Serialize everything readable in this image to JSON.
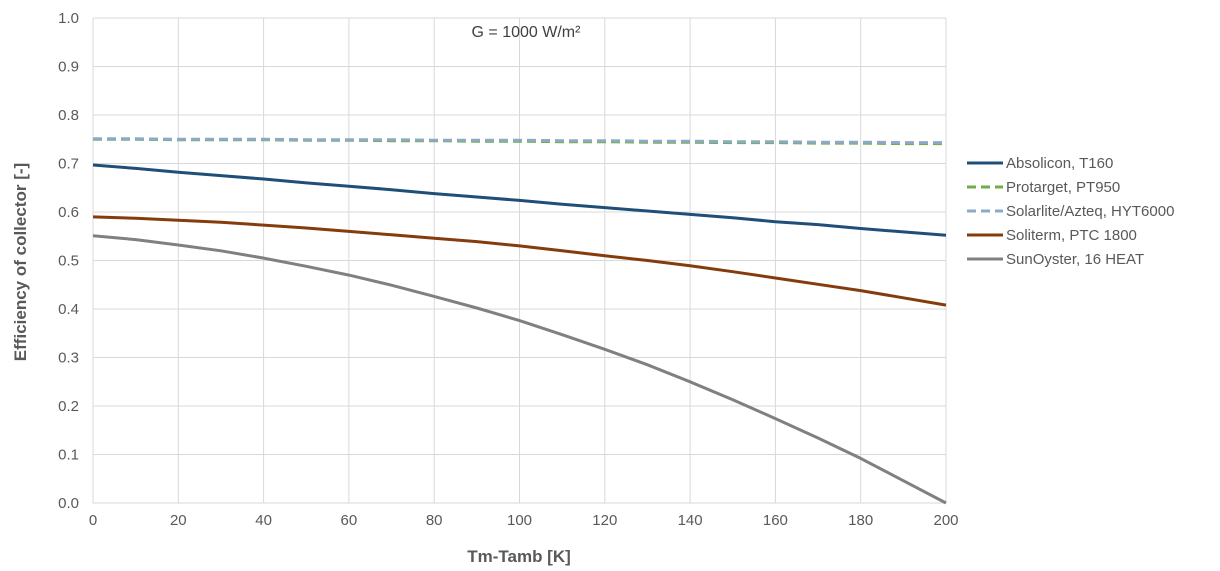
{
  "chart_data": {
    "type": "line",
    "annotation": "G = 1000 W/m²",
    "xlabel": "Tm-Tamb [K]",
    "ylabel": "Efficiency of collector [-]",
    "xlim": [
      0,
      200
    ],
    "ylim": [
      0,
      1
    ],
    "x_ticks": [
      0,
      20,
      40,
      60,
      80,
      100,
      120,
      140,
      160,
      180,
      200
    ],
    "y_ticks": [
      "0.0",
      "0.1",
      "0.2",
      "0.3",
      "0.4",
      "0.5",
      "0.6",
      "0.7",
      "0.8",
      "0.9",
      "1.0"
    ],
    "grid": true,
    "legend_position": "right",
    "x": [
      0,
      10,
      20,
      30,
      40,
      50,
      60,
      70,
      80,
      90,
      100,
      110,
      120,
      130,
      140,
      150,
      160,
      170,
      180,
      190,
      200
    ],
    "series": [
      {
        "name": "Absolicon, T160",
        "color": "#1f4e79",
        "dash": "solid",
        "values": [
          0.697,
          0.69,
          0.682,
          0.675,
          0.668,
          0.66,
          0.653,
          0.646,
          0.638,
          0.631,
          0.624,
          0.616,
          0.609,
          0.602,
          0.595,
          0.588,
          0.58,
          0.574,
          0.566,
          0.559,
          0.552
        ]
      },
      {
        "name": "Protarget, PT950",
        "color": "#70ad47",
        "dash": "dashed",
        "values": [
          0.75,
          0.75,
          0.749,
          0.749,
          0.749,
          0.748,
          0.748,
          0.747,
          0.747,
          0.746,
          0.746,
          0.745,
          0.745,
          0.744,
          0.744,
          0.743,
          0.743,
          0.742,
          0.742,
          0.741,
          0.741
        ]
      },
      {
        "name": "Solarlite/Azteq, HYT6000",
        "color": "#8ea9c8",
        "dash": "dashed",
        "values": [
          0.751,
          0.751,
          0.75,
          0.75,
          0.75,
          0.749,
          0.749,
          0.749,
          0.748,
          0.748,
          0.748,
          0.747,
          0.747,
          0.746,
          0.746,
          0.745,
          0.745,
          0.744,
          0.744,
          0.743,
          0.743
        ]
      },
      {
        "name": "Soliterm, PTC 1800",
        "color": "#843c0c",
        "dash": "solid",
        "values": [
          0.59,
          0.587,
          0.583,
          0.579,
          0.573,
          0.567,
          0.56,
          0.553,
          0.546,
          0.539,
          0.53,
          0.52,
          0.51,
          0.5,
          0.489,
          0.477,
          0.464,
          0.451,
          0.438,
          0.423,
          0.408
        ]
      },
      {
        "name": "SunOyster, 16 HEAT",
        "color": "#808080",
        "dash": "solid",
        "values": [
          0.551,
          0.543,
          0.532,
          0.52,
          0.505,
          0.488,
          0.47,
          0.449,
          0.426,
          0.402,
          0.376,
          0.347,
          0.317,
          0.285,
          0.25,
          0.213,
          0.174,
          0.134,
          0.092,
          0.046,
          0.0
        ]
      }
    ]
  }
}
